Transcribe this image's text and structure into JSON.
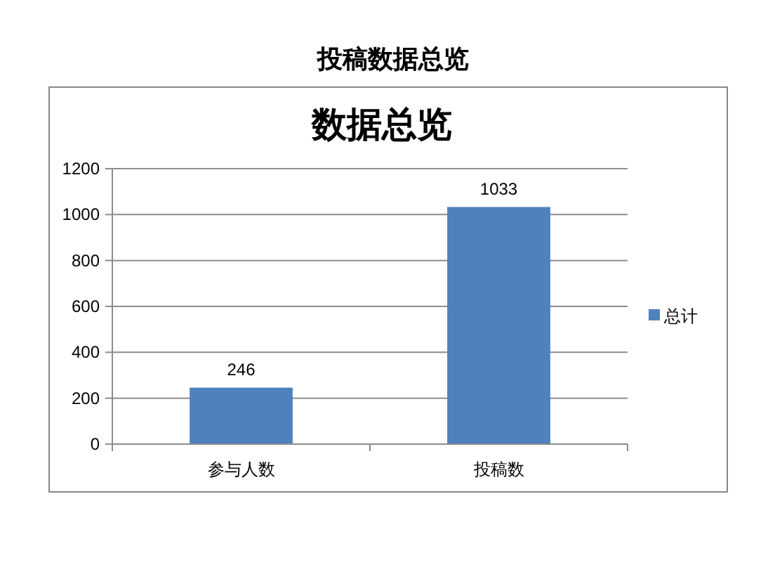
{
  "chart_data": {
    "type": "bar",
    "title": "投稿数据总览",
    "subtitle": "数据总览",
    "categories": [
      "参与人数",
      "投稿数"
    ],
    "series": [
      {
        "name": "总计",
        "color": "#4f81bd",
        "values": [
          246,
          1033
        ]
      }
    ],
    "ylim": [
      0,
      1200
    ],
    "yticks": [
      0,
      200,
      400,
      600,
      800,
      1000,
      1200
    ],
    "grid": "y",
    "legend": "right",
    "data_labels": true
  }
}
